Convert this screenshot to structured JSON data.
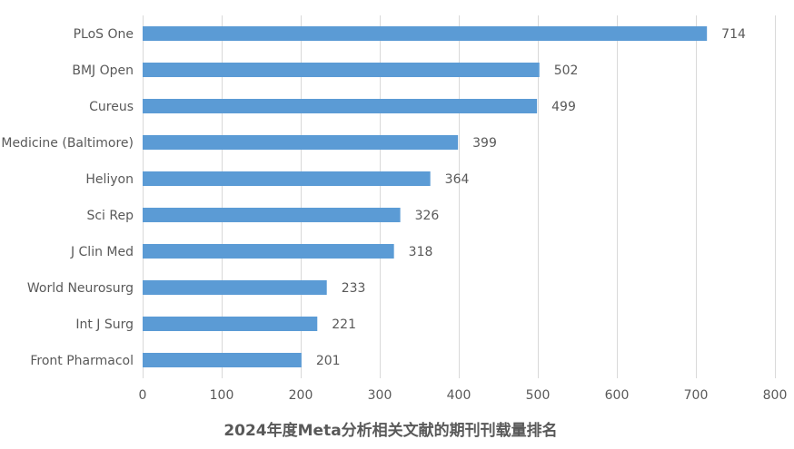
{
  "chart_data": {
    "type": "bar",
    "orientation": "horizontal",
    "title": "2024年度Meta分析相关文献的期刊刊载量排名",
    "categories": [
      "PLoS One",
      "BMJ Open",
      "Cureus",
      "Medicine (Baltimore)",
      "Heliyon",
      "Sci Rep",
      "J Clin Med",
      "World Neurosurg",
      "Int J Surg",
      "Front Pharmacol"
    ],
    "values": [
      714,
      502,
      499,
      399,
      364,
      326,
      318,
      233,
      221,
      201
    ],
    "xlim": [
      0,
      800
    ],
    "xticks": [
      0,
      100,
      200,
      300,
      400,
      500,
      600,
      700,
      800
    ],
    "grid": true,
    "bar_color": "#5b9bd5",
    "data_labels": true
  }
}
